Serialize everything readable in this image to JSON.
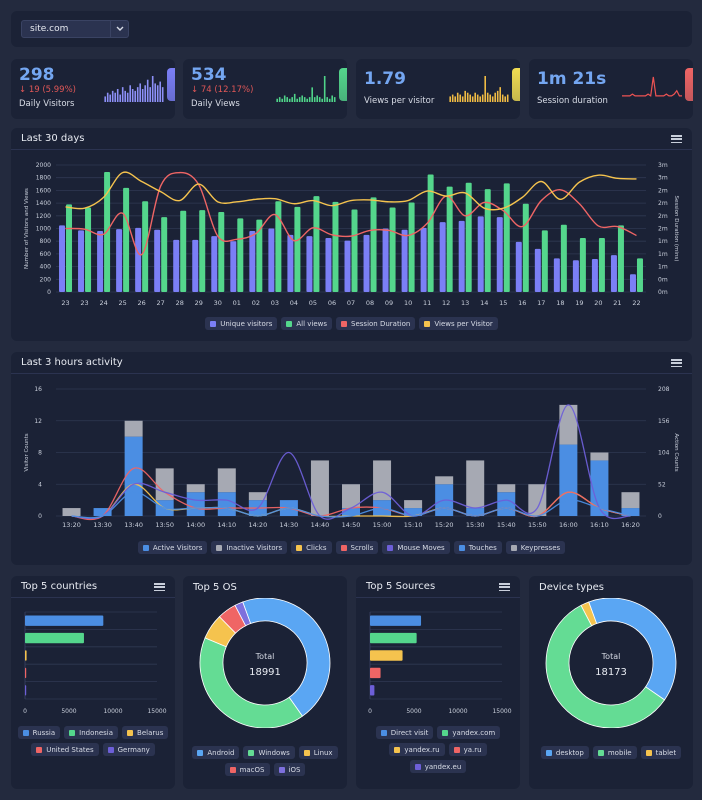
{
  "site_select": {
    "value": "site.com"
  },
  "stats": [
    {
      "value": "298",
      "change": "↓ 19 (5.99%)",
      "label": "Daily Visitors",
      "accent": "#7b7ff6",
      "spark": [
        3,
        5,
        4,
        6,
        5,
        7,
        4,
        8,
        6,
        5,
        9,
        7,
        6,
        8,
        10,
        7,
        9,
        12,
        8,
        14,
        10,
        9,
        11,
        8
      ],
      "spark_type": "bar",
      "spark_color": "#8c8ff7"
    },
    {
      "value": "534",
      "change": "↓ 74 (12.17%)",
      "label": "Daily Views",
      "accent": "#54d68c",
      "spark": [
        2,
        3,
        2,
        4,
        3,
        2,
        3,
        5,
        2,
        3,
        4,
        3,
        2,
        3,
        9,
        3,
        4,
        3,
        2,
        16,
        3,
        2,
        4,
        3
      ],
      "spark_type": "bar",
      "spark_color": "#4fd489"
    },
    {
      "value": "1.79",
      "change": "",
      "label": "Views per visitor",
      "accent": "#f0dc52",
      "spark": [
        3,
        4,
        3,
        5,
        4,
        3,
        6,
        5,
        4,
        3,
        5,
        4,
        3,
        4,
        14,
        5,
        4,
        3,
        5,
        6,
        8,
        4,
        3,
        4
      ],
      "spark_type": "bar",
      "spark_color": "#f0bb44"
    },
    {
      "value": "1m 21s",
      "change": "",
      "label": "Session duration",
      "accent": "#ef6565",
      "spark": [
        3,
        3,
        3,
        3,
        4,
        3,
        3,
        3,
        3,
        3,
        4,
        3,
        14,
        3,
        3,
        3,
        3,
        4,
        3,
        3,
        4,
        6,
        3,
        3
      ],
      "spark_type": "line",
      "spark_color": "#ee5353"
    }
  ],
  "chart30": {
    "title": "Last 30 days",
    "chart_data": {
      "type": "bar",
      "categories": [
        "23",
        "23",
        "24",
        "25",
        "26",
        "27",
        "28",
        "29",
        "30",
        "01",
        "02",
        "03",
        "04",
        "05",
        "06",
        "07",
        "08",
        "09",
        "10",
        "11",
        "12",
        "13",
        "14",
        "15",
        "16",
        "17",
        "18",
        "19",
        "20",
        "21",
        "22"
      ],
      "series": [
        {
          "name": "Unique visitors",
          "color": "#7b7ff6",
          "values": [
            1050,
            970,
            960,
            990,
            1010,
            980,
            820,
            820,
            880,
            800,
            960,
            1000,
            900,
            880,
            850,
            810,
            900,
            1000,
            980,
            1010,
            1100,
            1120,
            1190,
            1180,
            790,
            680,
            530,
            500,
            520,
            580,
            280
          ]
        },
        {
          "name": "All views",
          "color": "#54d68c",
          "values": [
            1380,
            1330,
            1890,
            1640,
            1430,
            1180,
            1280,
            1290,
            1260,
            1160,
            1140,
            1430,
            1340,
            1510,
            1420,
            1300,
            1490,
            1330,
            1410,
            1850,
            1660,
            1720,
            1620,
            1710,
            1390,
            970,
            1060,
            850,
            850,
            1050,
            530
          ]
        },
        {
          "name": "Session Duration",
          "color": "#ef6565",
          "values": [
            1000,
            990,
            910,
            1240,
            590,
            1670,
            1880,
            1690,
            880,
            830,
            920,
            1220,
            810,
            1010,
            900,
            880,
            970,
            970,
            890,
            1080,
            1510,
            1200,
            1410,
            1280,
            1030,
            1440,
            1610,
            1390,
            1040,
            1030,
            890
          ]
        },
        {
          "name": "Views per Visitor",
          "color": "#f5c34e",
          "values": [
            1340,
            1320,
            1490,
            1880,
            1740,
            1580,
            1440,
            1700,
            1420,
            1420,
            1460,
            1470,
            1390,
            1440,
            1360,
            1440,
            1450,
            1420,
            1440,
            1590,
            1510,
            1560,
            1320,
            1320,
            1490,
            1740,
            1460,
            1730,
            1840,
            1790,
            1780
          ]
        }
      ],
      "yticks_left": [
        "0",
        "200",
        "400",
        "600",
        "800",
        "1000",
        "1200",
        "1400",
        "1600",
        "1800",
        "2000"
      ],
      "yticks_right": [
        "0m",
        "0m",
        "1m",
        "1m",
        "1m",
        "2m",
        "2m",
        "2m",
        "2m",
        "3m",
        "3m"
      ],
      "ylabel": "Number of Visitors and Views",
      "ylabel_right": "Session Duration (mins)",
      "ylim": [
        0,
        2000
      ]
    }
  },
  "chart3h": {
    "title": "Last 3 hours activity",
    "chart_data": {
      "type": "bar",
      "categories": [
        "13:20",
        "13:30",
        "13:40",
        "13:50",
        "14:00",
        "14:10",
        "14:20",
        "14:30",
        "14:40",
        "14:50",
        "15:00",
        "15:10",
        "15:20",
        "15:30",
        "15:40",
        "15:50",
        "16:00",
        "16:10",
        "16:20"
      ],
      "series": [
        {
          "name": "Active Visitors",
          "color": "#4b8ee3",
          "values": [
            0,
            1,
            10,
            2,
            3,
            3,
            2,
            2,
            0,
            1,
            2,
            1,
            4,
            1,
            3,
            0,
            9,
            7,
            1
          ]
        },
        {
          "name": "Inactive Visitors",
          "color": "#a6a9b3",
          "values": [
            1,
            0,
            2,
            4,
            1,
            3,
            1,
            0,
            7,
            3,
            5,
            1,
            1,
            6,
            1,
            4,
            5,
            1,
            2
          ]
        },
        {
          "name": "Clicks",
          "color": "#f5c34e",
          "values": [
            0,
            0,
            4,
            1,
            1,
            1,
            0,
            1,
            0,
            0,
            0,
            0,
            1,
            0,
            1,
            0,
            3,
            1,
            0
          ]
        },
        {
          "name": "Scrolls",
          "color": "#ef6565",
          "values": [
            0,
            0,
            6,
            3,
            1,
            1,
            1,
            1,
            0,
            1,
            1,
            0,
            1,
            0,
            1,
            0,
            3,
            1,
            0
          ]
        },
        {
          "name": "Mouse Moves",
          "color": "#6d5fd8",
          "values": [
            0,
            0,
            4,
            3,
            2,
            2,
            1,
            8,
            0,
            1,
            3,
            0,
            2,
            1,
            2,
            1,
            14,
            1,
            0
          ]
        },
        {
          "name": "Touches",
          "color": "#4b8ee3",
          "values": [
            0,
            0,
            3,
            1,
            1,
            1,
            0,
            1,
            0,
            0,
            1,
            0,
            1,
            0,
            1,
            0,
            2,
            1,
            0
          ]
        },
        {
          "name": "Keypresses",
          "color": "#a6a9b3",
          "values": [
            0,
            0,
            0,
            0,
            0,
            0,
            0,
            0,
            0,
            0,
            0,
            0,
            0,
            0,
            0,
            0,
            0,
            0,
            0
          ]
        }
      ],
      "yticks_left": [
        "0",
        "4",
        "8",
        "12",
        "16"
      ],
      "yticks_right": [
        "0",
        "52",
        "104",
        "156",
        "208"
      ],
      "ylabel": "Visitor Counts",
      "ylabel_right": "Action Counts",
      "ylim": [
        0,
        16
      ]
    }
  },
  "countries": {
    "title": "Top 5 countries",
    "chart_data": {
      "type": "bar",
      "categories": [
        "Russia",
        "Indonesia",
        "Belarus",
        "United States",
        "Germany"
      ],
      "values": [
        8900,
        6700,
        180,
        80,
        60
      ],
      "colors": [
        "#4b8ee3",
        "#54d68c",
        "#f5c34e",
        "#ef6565",
        "#6d5fd8"
      ],
      "xticks": [
        "0",
        "5000",
        "10000",
        "15000"
      ],
      "xlim": [
        0,
        15000
      ]
    }
  },
  "os": {
    "title": "Top 5 OS",
    "total_label": "Total",
    "total": "18991",
    "chart_data": {
      "type": "pie",
      "labels": [
        "Android",
        "Windows",
        "Linux",
        "macOS",
        "iOS"
      ],
      "values": [
        8700,
        7800,
        1200,
        900,
        391
      ],
      "colors": [
        "#5aa6f3",
        "#64dc94",
        "#f5c34e",
        "#ef6565",
        "#7e70dd"
      ]
    }
  },
  "sources": {
    "title": "Top 5 Sources",
    "chart_data": {
      "type": "bar",
      "categories": [
        "Direct visit",
        "yandex.com",
        "yandex.ru",
        "ya.ru",
        "yandex.eu"
      ],
      "values": [
        5800,
        5300,
        3700,
        1200,
        500
      ],
      "colors": [
        "#4b8ee3",
        "#54d68c",
        "#f5c34e",
        "#ef6565",
        "#6d5fd8"
      ],
      "xticks": [
        "0",
        "5000",
        "10000",
        "15000"
      ],
      "xlim": [
        0,
        15000
      ]
    }
  },
  "devices": {
    "title": "Device types",
    "total_label": "Total",
    "total": "18173",
    "chart_data": {
      "type": "pie",
      "labels": [
        "desktop",
        "mobile",
        "tablet"
      ],
      "values": [
        7300,
        10500,
        373
      ],
      "colors": [
        "#5aa6f3",
        "#64dc94",
        "#f5c34e"
      ]
    }
  }
}
